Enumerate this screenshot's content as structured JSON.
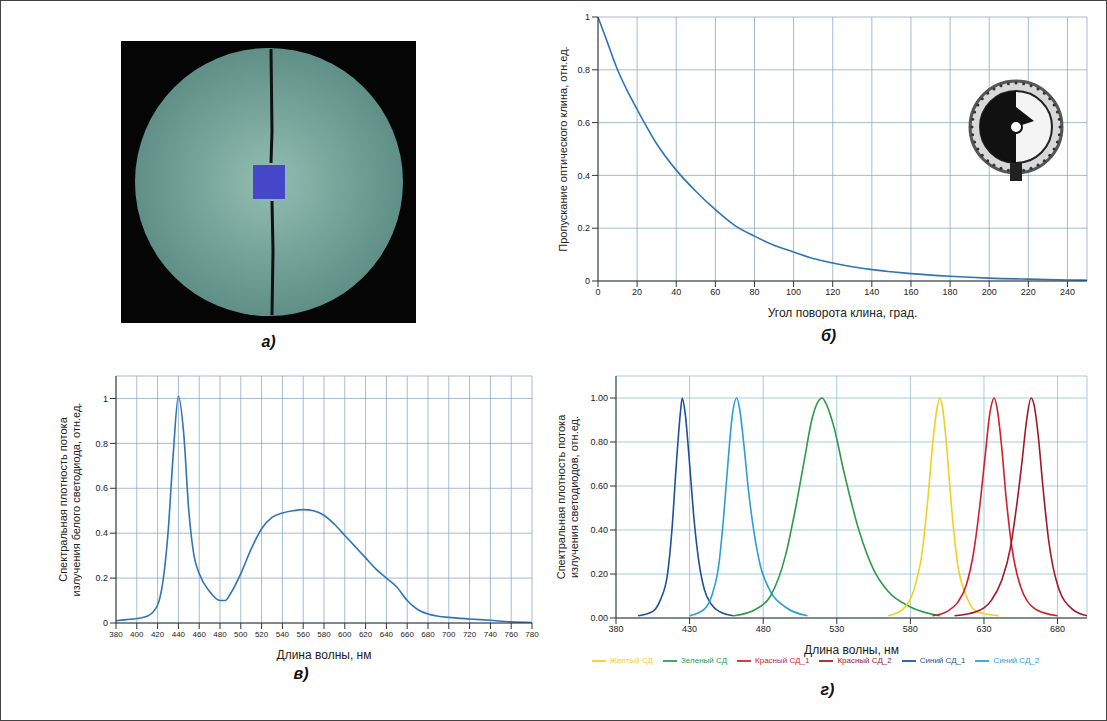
{
  "chart_data": [
    {
      "type": "image",
      "title": "а)"
    },
    {
      "type": "line",
      "title": "б)",
      "x_label": "Угол поворота клина, град.",
      "y_label": "Пропускание оптического клина, отн.ед.",
      "color": "#2e75b6",
      "grid": true,
      "x": [
        0,
        5,
        10,
        15,
        20,
        30,
        40,
        50,
        60,
        70,
        80,
        90,
        100,
        110,
        120,
        130,
        140,
        150,
        160,
        180,
        200,
        220,
        240,
        250
      ],
      "values": [
        1,
        0.9,
        0.8,
        0.72,
        0.65,
        0.52,
        0.42,
        0.34,
        0.27,
        0.21,
        0.17,
        0.135,
        0.11,
        0.085,
        0.068,
        0.054,
        0.043,
        0.035,
        0.028,
        0.018,
        0.011,
        0.007,
        0.004,
        0.003
      ],
      "xlim": [
        0,
        250
      ],
      "xticks": [
        0,
        20,
        40,
        60,
        80,
        100,
        120,
        140,
        160,
        180,
        200,
        220,
        240
      ],
      "ylim": [
        0,
        1
      ],
      "yticks": [
        0,
        0.2,
        0.4,
        0.6,
        0.8,
        1
      ]
    },
    {
      "type": "line",
      "title": "в)",
      "x_label": "Длина волны, нм",
      "y_label": "Спектральная плотность потока излучения белого светодиода, отн.ед.",
      "color": "#2e75b6",
      "grid": true,
      "x": [
        380,
        390,
        400,
        410,
        420,
        430,
        435,
        440,
        445,
        450,
        455,
        460,
        470,
        480,
        485,
        490,
        500,
        510,
        520,
        530,
        540,
        550,
        560,
        570,
        580,
        590,
        600,
        610,
        620,
        630,
        640,
        650,
        660,
        670,
        680,
        690,
        700,
        720,
        740,
        760,
        780
      ],
      "values": [
        0.01,
        0.015,
        0.02,
        0.03,
        0.08,
        0.4,
        0.75,
        1.01,
        0.85,
        0.5,
        0.3,
        0.22,
        0.14,
        0.1,
        0.1,
        0.13,
        0.22,
        0.33,
        0.42,
        0.47,
        0.49,
        0.5,
        0.505,
        0.5,
        0.48,
        0.44,
        0.39,
        0.34,
        0.29,
        0.24,
        0.2,
        0.16,
        0.1,
        0.06,
        0.04,
        0.03,
        0.025,
        0.018,
        0.012,
        0.005,
        0.002
      ],
      "xlim": [
        380,
        780
      ],
      "xticks": [
        380,
        400,
        420,
        440,
        460,
        480,
        500,
        520,
        540,
        560,
        580,
        600,
        620,
        640,
        660,
        680,
        700,
        720,
        740,
        760,
        780
      ],
      "ylim": [
        0,
        1.1
      ],
      "yticks": [
        0,
        0.2,
        0.4,
        0.6,
        0.8,
        1
      ]
    },
    {
      "type": "line",
      "title": "г)",
      "x_label": "Длина волны, нм",
      "y_label": "Спектральная плотность потока излучения светодиодов, отн.ед.",
      "grid": true,
      "legend": "bottom",
      "xlim": [
        380,
        700
      ],
      "xticks": [
        380,
        430,
        480,
        530,
        580,
        630,
        680
      ],
      "ylim": [
        0,
        1.1
      ],
      "yticks": [
        {
          "value": 0,
          "label": "0.00"
        },
        {
          "value": 0.2,
          "label": "0.20"
        },
        {
          "value": 0.4,
          "label": "0.40"
        },
        {
          "value": 0.6,
          "label": "0.60"
        },
        {
          "value": 0.8,
          "label": "0.80"
        },
        {
          "value": 1,
          "label": "1.00"
        }
      ],
      "series": [
        {
          "name": "Синий СД_1",
          "color": "#1f4e9a",
          "x": [
            395,
            405,
            410,
            415,
            418,
            421,
            424,
            425,
            427,
            430,
            433,
            436,
            440,
            445,
            450,
            460
          ],
          "values": [
            0.01,
            0.03,
            0.08,
            0.2,
            0.4,
            0.7,
            0.95,
            1.0,
            0.93,
            0.7,
            0.45,
            0.27,
            0.13,
            0.06,
            0.03,
            0.01
          ]
        },
        {
          "name": "Синий СД_2",
          "color": "#2aa0d0",
          "x": [
            430,
            440,
            445,
            450,
            453,
            456,
            459,
            462,
            464,
            467,
            470,
            474,
            478,
            485,
            495,
            510
          ],
          "values": [
            0.01,
            0.04,
            0.1,
            0.25,
            0.45,
            0.7,
            0.92,
            1.0,
            0.95,
            0.78,
            0.58,
            0.38,
            0.24,
            0.12,
            0.05,
            0.01
          ]
        },
        {
          "name": "Зеленый СД",
          "color": "#2e9a48",
          "x": [
            460,
            475,
            485,
            495,
            502,
            508,
            513,
            517,
            520,
            523,
            528,
            535,
            545,
            555,
            565,
            580,
            600
          ],
          "values": [
            0.01,
            0.04,
            0.1,
            0.28,
            0.5,
            0.72,
            0.9,
            0.98,
            1.0,
            0.97,
            0.87,
            0.66,
            0.4,
            0.22,
            0.12,
            0.05,
            0.01
          ]
        },
        {
          "name": "Желтый СД",
          "color": "#f0d020",
          "x": [
            565,
            575,
            582,
            588,
            592,
            595,
            598,
            600,
            602,
            605,
            608,
            612,
            618,
            625,
            640
          ],
          "values": [
            0.01,
            0.04,
            0.12,
            0.3,
            0.55,
            0.78,
            0.95,
            1.0,
            0.95,
            0.75,
            0.5,
            0.25,
            0.1,
            0.03,
            0.01
          ]
        },
        {
          "name": "Красный СД_1",
          "color": "#d02030",
          "x": [
            595,
            605,
            612,
            618,
            623,
            627,
            631,
            634,
            637,
            639,
            642,
            645,
            649,
            655,
            665,
            680
          ],
          "values": [
            0.01,
            0.03,
            0.07,
            0.15,
            0.3,
            0.5,
            0.75,
            0.93,
            1.0,
            0.95,
            0.78,
            0.55,
            0.32,
            0.14,
            0.04,
            0.01
          ]
        },
        {
          "name": "Красный СД_2",
          "color": "#a01828",
          "x": [
            610,
            625,
            635,
            642,
            648,
            652,
            656,
            659,
            662,
            664,
            667,
            670,
            674,
            680,
            690,
            700
          ],
          "values": [
            0.01,
            0.03,
            0.08,
            0.17,
            0.32,
            0.5,
            0.72,
            0.9,
            1.0,
            0.97,
            0.82,
            0.6,
            0.35,
            0.15,
            0.04,
            0.01
          ]
        }
      ]
    }
  ]
}
